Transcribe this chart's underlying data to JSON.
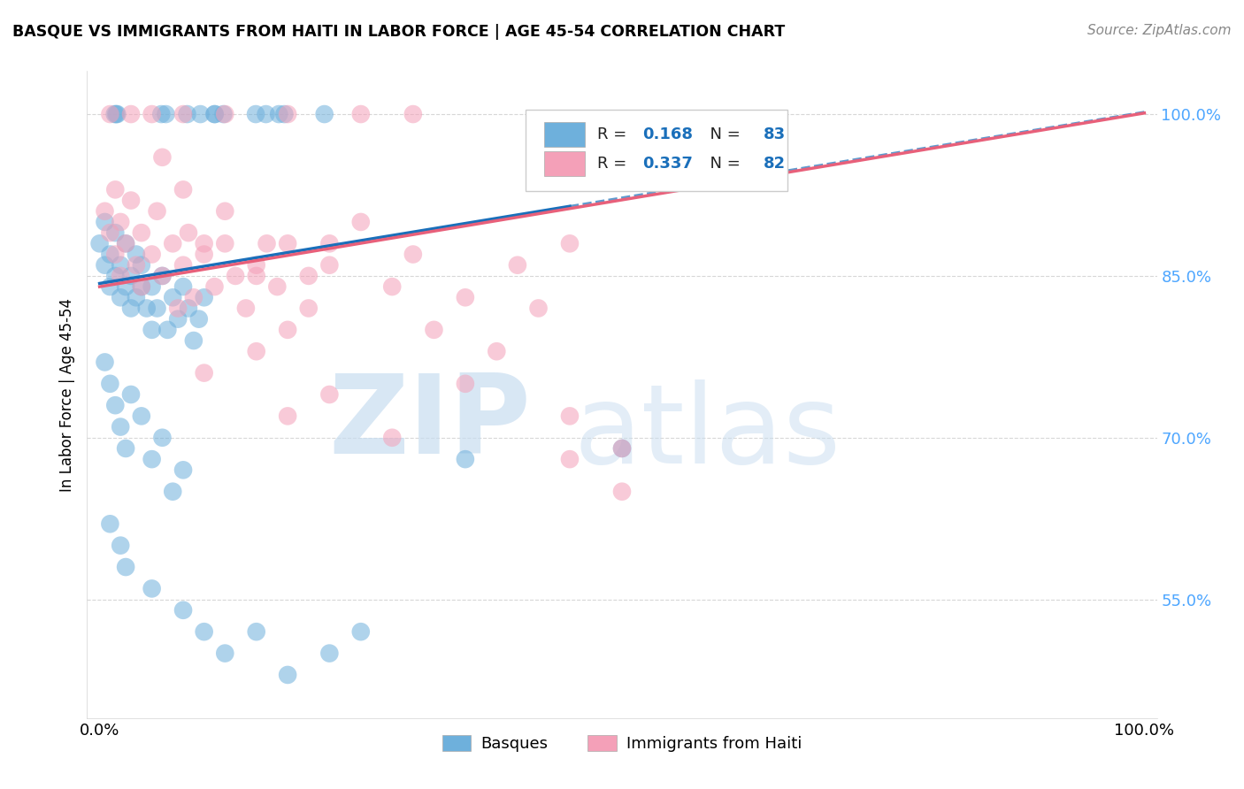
{
  "title": "BASQUE VS IMMIGRANTS FROM HAITI IN LABOR FORCE | AGE 45-54 CORRELATION CHART",
  "source": "Source: ZipAtlas.com",
  "ylabel": "In Labor Force | Age 45-54",
  "legend_label1": "Basques",
  "legend_label2": "Immigrants from Haiti",
  "R1": 0.168,
  "N1": 83,
  "R2": 0.337,
  "N2": 82,
  "watermark_ZIP": "ZIP",
  "watermark_atlas": "atlas",
  "xlim": [
    0.0,
    1.0
  ],
  "ylim_low": 0.44,
  "ylim_high": 1.04,
  "yticks": [
    0.55,
    0.7,
    0.85,
    1.0
  ],
  "ytick_labels": [
    "55.0%",
    "70.0%",
    "85.0%",
    "100.0%"
  ],
  "color_blue": "#6eb0dc",
  "color_pink": "#f4a0b8",
  "color_blue_line": "#1a6fba",
  "color_pink_line": "#e8607a",
  "color_ytick": "#4da6ff",
  "bg_color": "#ffffff"
}
